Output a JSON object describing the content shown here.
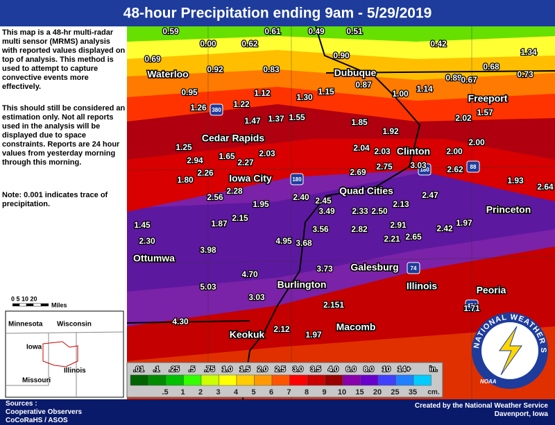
{
  "header": {
    "title": "48-hour Precipitation ending 9am - 5/29/2019"
  },
  "description": {
    "paragraphs": [
      "This map is a 48-hr multi-radar multi sensor (MRMS) analysis with reported values displayed on top of analysis.  This method is used to attempt to capture convective events more effectively.",
      "This should still be considered an estimation only. Not all reports used in the analysis will be displayed due to space constraints. Reports are 24 hour values from yesterday morning through this morning.",
      "Note: 0.001 indicates trace of precipitation."
    ]
  },
  "observations": [
    "0.59",
    "0.61",
    "0.49",
    "0.51",
    "0.00",
    "0.62",
    "0.42",
    "0.90",
    "1.34",
    "0.69",
    "0.92",
    "0.83",
    "0.68",
    "0.89",
    "0.67",
    "0.73",
    "0.87",
    "1.14",
    "1.00",
    "0.95",
    "1.12",
    "1.30",
    "1.15",
    "1.26",
    "1.22",
    "1.57",
    "1.47",
    "1.37",
    "1.55",
    "2.02",
    "1.85",
    "1.92",
    "2.00",
    "1.25",
    "2.04",
    "2.03",
    "2.00",
    "1.65",
    "2.03",
    "2.94",
    "2.27",
    "3.03",
    "2.75",
    "2.62",
    "2.69",
    "2.26",
    "1.80",
    "1.93",
    "2.64",
    "2.28",
    "2.56",
    "2.40",
    "2.47",
    "2.45",
    "1.95",
    "2.13",
    "3.49",
    "2.33",
    "2.50",
    "1.45",
    "1.87",
    "2.15",
    "1.97",
    "2.91",
    "3.56",
    "2.82",
    "2.42",
    "2.21",
    "2.65",
    "2.30",
    "4.95",
    "3.68",
    "3.98",
    "3.73",
    "4.70",
    "5.03",
    "3.03",
    "2.151",
    "1.71",
    "4.30",
    "2.12",
    "1.97"
  ],
  "cities": [
    "Waterloo",
    "Dubuque",
    "Freeport",
    "Cedar Rapids",
    "Clinton",
    "Iowa City",
    "Quad Cities",
    "Princeton",
    "Ottumwa",
    "Galesburg",
    "Burlington",
    "Peoria",
    "Keokuk",
    "Macomb",
    "Illinois"
  ],
  "interstates": [
    "380",
    "180",
    "88",
    "180",
    "74",
    "474"
  ],
  "legend": {
    "in_labels": [
      ".01",
      ".1",
      ".25",
      ".5",
      ".75",
      "1.0",
      "1.5",
      "2.0",
      "2.5",
      "3.0",
      "3.5",
      "4.0",
      "6.0",
      "8.0",
      "10",
      "14+"
    ],
    "in_unit": "in.",
    "cm_labels": [
      ".5",
      "1",
      "2",
      "3",
      "4",
      "5",
      "6",
      "7",
      "8",
      "9",
      "10",
      "15",
      "20",
      "25",
      "35"
    ],
    "cm_unit": "cm."
  },
  "inset": {
    "scale": "0  5  10    20",
    "scale_unit": "Miles",
    "states": [
      "Minnesota",
      "Wisconsin",
      "Iowa",
      "Illinois",
      "Missouri"
    ]
  },
  "logo": {
    "text": "NATIONAL WEATHER SERVICE",
    "agency": "NOAA"
  },
  "footer": {
    "sources": [
      "Sources :",
      "Cooperative Observers",
      "CoCoRaHS / ASOS"
    ],
    "credit": [
      "Created by the National Weather Service",
      "Davenport, Iowa"
    ]
  }
}
